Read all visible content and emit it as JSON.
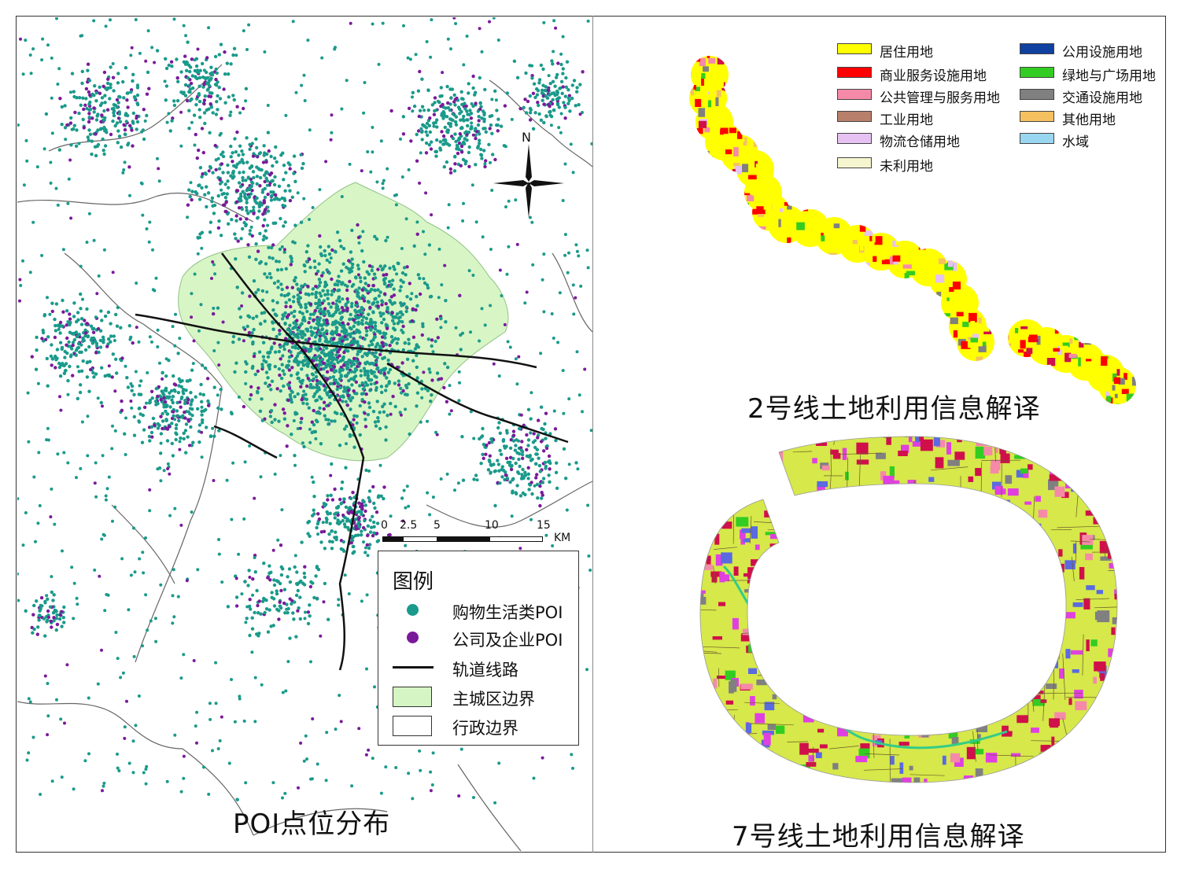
{
  "titles": {
    "poi": "POI点位分布",
    "line2": "2号线土地利用信息解译",
    "line7": "7号线土地利用信息解译"
  },
  "poi_legend": {
    "title": "图例",
    "items": [
      {
        "label": "购物生活类POI",
        "symbol": "dot",
        "color": "#1a9a8a"
      },
      {
        "label": "公司及企业POI",
        "symbol": "dot",
        "color": "#7a1a9a"
      },
      {
        "label": "轨道线路",
        "symbol": "line",
        "color": "#111111"
      },
      {
        "label": "主城区边界",
        "symbol": "box",
        "color": "#d6f5c4"
      },
      {
        "label": "行政边界",
        "symbol": "box",
        "color": "#ffffff"
      }
    ]
  },
  "scale_bar": {
    "ticks": [
      "0",
      "2.5",
      "5",
      "10",
      "15"
    ],
    "unit": "KM"
  },
  "north_label": "N",
  "landuse_legend": [
    {
      "label": "居住用地",
      "color": "#ffff00"
    },
    {
      "label": "公用设施用地",
      "color": "#1040a0"
    },
    {
      "label": "商业服务设施用地",
      "color": "#ff0000"
    },
    {
      "label": "绿地与广场用地",
      "color": "#33cc22"
    },
    {
      "label": "公共管理与服务用地",
      "color": "#f58aa8"
    },
    {
      "label": "交通设施用地",
      "color": "#808080"
    },
    {
      "label": "工业用地",
      "color": "#b8806a"
    },
    {
      "label": "其他用地",
      "color": "#f5c060"
    },
    {
      "label": "物流仓储用地",
      "color": "#e6c2f2"
    },
    {
      "label": "水域",
      "color": "#99d6f0"
    },
    {
      "label": "未利用地",
      "color": "#f5f5d0"
    }
  ],
  "colors": {
    "teal_poi": "#1a9a8a",
    "purple_poi": "#7a1a9a",
    "main_city": "#d6f5c4",
    "line7_base": "#d6e84a",
    "line7_magenta": "#e040e0",
    "line7_crimson": "#d0104a"
  }
}
